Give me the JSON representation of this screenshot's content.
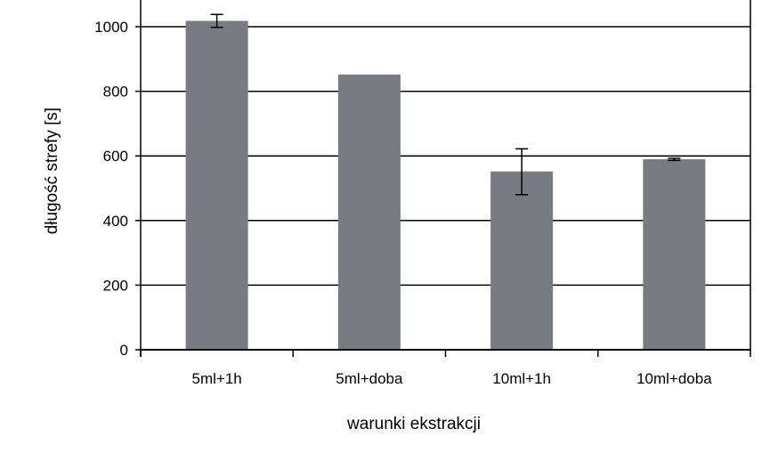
{
  "chart_data": {
    "type": "bar",
    "categories": [
      "5ml+1h",
      "5ml+doba",
      "10ml+1h",
      "10ml+doba"
    ],
    "values": [
      1018,
      852,
      552,
      590
    ],
    "error_bars": [
      {
        "low": 998,
        "high": 1038
      },
      null,
      {
        "low": 480,
        "high": 622
      },
      {
        "low": 586,
        "high": 593
      }
    ],
    "xlabel": "warunki ekstrakcji",
    "ylabel": "długość strefy [s]",
    "ylim": [
      0,
      1100
    ],
    "yticks": [
      0,
      200,
      400,
      600,
      800,
      1000
    ],
    "grid": true,
    "colors": {
      "bar": "#787b82",
      "grid": "#000000",
      "axis": "#000000"
    }
  }
}
